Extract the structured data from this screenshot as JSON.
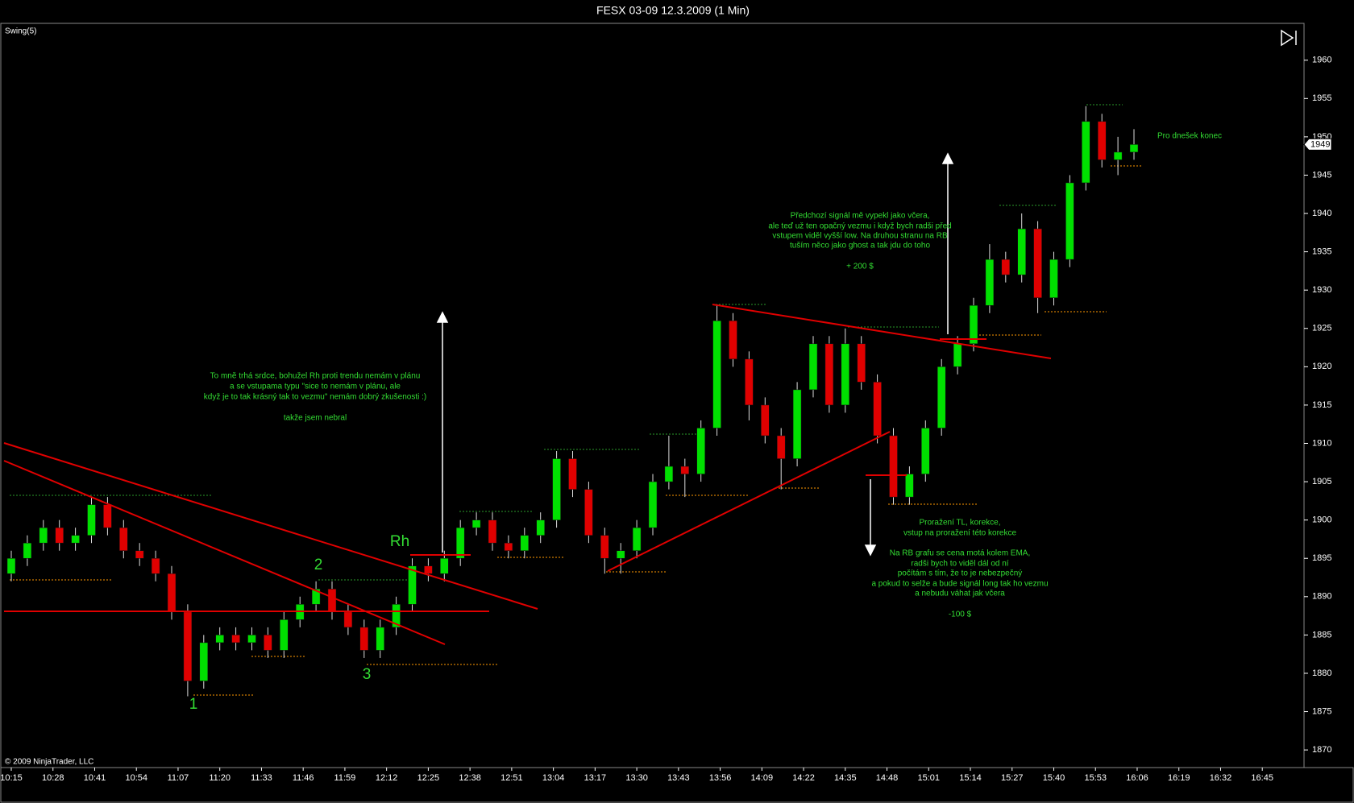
{
  "chart_data": {
    "type": "candlestick",
    "title": "FESX 03-09  12.3.2009 (1 Min)",
    "indicator": "Swing(5)",
    "copyright": "© 2009 NinjaTrader, LLC",
    "up_color": "#00e000",
    "down_color": "#e00000",
    "annotation_color": "#33dd33",
    "x": [
      "10:15",
      "10:20",
      "10:25",
      "10:30",
      "10:35",
      "10:40",
      "10:45",
      "10:50",
      "10:55",
      "11:00",
      "11:05",
      "11:10",
      "11:15",
      "11:20",
      "11:25",
      "11:30",
      "11:35",
      "11:40",
      "11:45",
      "11:50",
      "11:55",
      "12:00",
      "12:05",
      "12:10",
      "12:15",
      "12:20",
      "12:25",
      "12:30",
      "12:35",
      "12:40",
      "12:45",
      "12:50",
      "12:55",
      "13:00",
      "13:05",
      "13:10",
      "13:15",
      "13:20",
      "13:25",
      "13:30",
      "13:35",
      "13:40",
      "13:45",
      "13:50",
      "13:55",
      "14:00",
      "14:05",
      "14:10",
      "14:15",
      "14:20",
      "14:25",
      "14:30",
      "14:35",
      "14:40",
      "14:45",
      "14:50",
      "14:55",
      "15:00",
      "15:05",
      "15:10",
      "15:15",
      "15:20",
      "15:25",
      "15:30",
      "15:35",
      "15:40",
      "15:45",
      "15:50",
      "15:55",
      "16:00",
      "16:05"
    ],
    "open": [
      1893,
      1895,
      1897,
      1899,
      1897,
      1898,
      1902,
      1899,
      1896,
      1895,
      1893,
      1888,
      1879,
      1884,
      1885,
      1884,
      1885,
      1883,
      1887,
      1889,
      1891,
      1888,
      1886,
      1883,
      1886,
      1889,
      1894,
      1893,
      1895,
      1899,
      1900,
      1897,
      1896,
      1898,
      1900,
      1908,
      1904,
      1898,
      1895,
      1896,
      1899,
      1905,
      1907,
      1906,
      1912,
      1926,
      1921,
      1915,
      1911,
      1908,
      1917,
      1923,
      1915,
      1923,
      1918,
      1911,
      1903,
      1906,
      1912,
      1920,
      1923,
      1928,
      1934,
      1932,
      1938,
      1929,
      1934,
      1944,
      1952,
      1947,
      1948
    ],
    "high": [
      1896,
      1898,
      1900,
      1900,
      1899,
      1903,
      1903,
      1900,
      1897,
      1896,
      1894,
      1889,
      1885,
      1886,
      1886,
      1886,
      1886,
      1888,
      1890,
      1892,
      1892,
      1889,
      1887,
      1887,
      1890,
      1895,
      1895,
      1896,
      1900,
      1901,
      1901,
      1898,
      1899,
      1901,
      1909,
      1909,
      1905,
      1899,
      1897,
      1900,
      1906,
      1911,
      1908,
      1913,
      1928,
      1927,
      1922,
      1916,
      1912,
      1918,
      1924,
      1924,
      1925,
      1924,
      1919,
      1912,
      1907,
      1913,
      1921,
      1924,
      1929,
      1936,
      1935,
      1940,
      1939,
      1935,
      1945,
      1954,
      1953,
      1950,
      1951
    ],
    "low": [
      1892,
      1894,
      1896,
      1896,
      1896,
      1897,
      1898,
      1895,
      1894,
      1892,
      1887,
      1877,
      1878,
      1883,
      1883,
      1883,
      1882,
      1882,
      1886,
      1888,
      1887,
      1885,
      1882,
      1882,
      1885,
      1888,
      1892,
      1892,
      1894,
      1898,
      1896,
      1895,
      1895,
      1897,
      1899,
      1903,
      1897,
      1893,
      1893,
      1895,
      1898,
      1904,
      1903,
      1905,
      1911,
      1920,
      1913,
      1910,
      1904,
      1907,
      1916,
      1914,
      1914,
      1917,
      1910,
      1902,
      1902,
      1905,
      1911,
      1919,
      1922,
      1927,
      1931,
      1931,
      1927,
      1928,
      1933,
      1943,
      1946,
      1945,
      1947
    ],
    "close": [
      1895,
      1897,
      1899,
      1897,
      1898,
      1902,
      1899,
      1896,
      1895,
      1893,
      1888,
      1879,
      1884,
      1885,
      1884,
      1885,
      1883,
      1887,
      1889,
      1891,
      1888,
      1886,
      1883,
      1886,
      1889,
      1894,
      1893,
      1895,
      1899,
      1900,
      1897,
      1896,
      1898,
      1900,
      1908,
      1904,
      1898,
      1895,
      1896,
      1899,
      1905,
      1907,
      1906,
      1912,
      1926,
      1921,
      1915,
      1911,
      1908,
      1917,
      1923,
      1915,
      1923,
      1918,
      1911,
      1903,
      1906,
      1912,
      1920,
      1923,
      1928,
      1934,
      1932,
      1938,
      1929,
      1934,
      1944,
      1952,
      1947,
      1948,
      1949
    ],
    "ylim": [
      1867.7,
      1964.7
    ],
    "yticks": [
      1870,
      1875,
      1880,
      1885,
      1890,
      1895,
      1900,
      1905,
      1910,
      1915,
      1920,
      1925,
      1930,
      1935,
      1940,
      1945,
      1950,
      1955,
      1960
    ],
    "xticks": [
      "10:15",
      "10:28",
      "10:41",
      "10:54",
      "11:07",
      "11:20",
      "11:33",
      "11:46",
      "11:59",
      "12:12",
      "12:25",
      "12:38",
      "12:51",
      "13:04",
      "13:17",
      "13:30",
      "13:43",
      "13:56",
      "14:09",
      "14:22",
      "14:35",
      "14:48",
      "15:01",
      "15:14",
      "15:27",
      "15:40",
      "15:53",
      "16:06",
      "16:19",
      "16:32",
      "16:45"
    ],
    "annotations": [
      [
        "To mně trhá srdce, bohužel Rh proti trendu nemám v plánu",
        "a se vstupama typu \"sice to nemám v plánu, ale",
        "když je to tak krásný tak to vezmu\" nemám dobrý zkušenosti :)",
        "takže jsem nebral"
      ],
      [
        "Předchozí signál mě vypekl jako včera,",
        "ale teď už ten opačný vezmu i když bych radši před",
        "vstupem viděl vyšší low. Na druhou stranu na RB",
        "tuším něco jako ghost a tak jdu do toho",
        "+ 200 $"
      ],
      [
        "Proražení TL, korekce,",
        "vstup na proražení této korekce",
        "Na RB grafu se cena motá kolem EMA,",
        "radši bych to viděl dál od ní",
        "počítám s tím, že to je nebezpečný",
        "a pokud to selže a bude signál long tak ho vezmu",
        "a nebudu váhat jak včera",
        "-100 $"
      ],
      [
        "Pro dnešek konec"
      ]
    ],
    "swing_labels": [
      "1",
      "2",
      "3",
      "Rh"
    ]
  }
}
